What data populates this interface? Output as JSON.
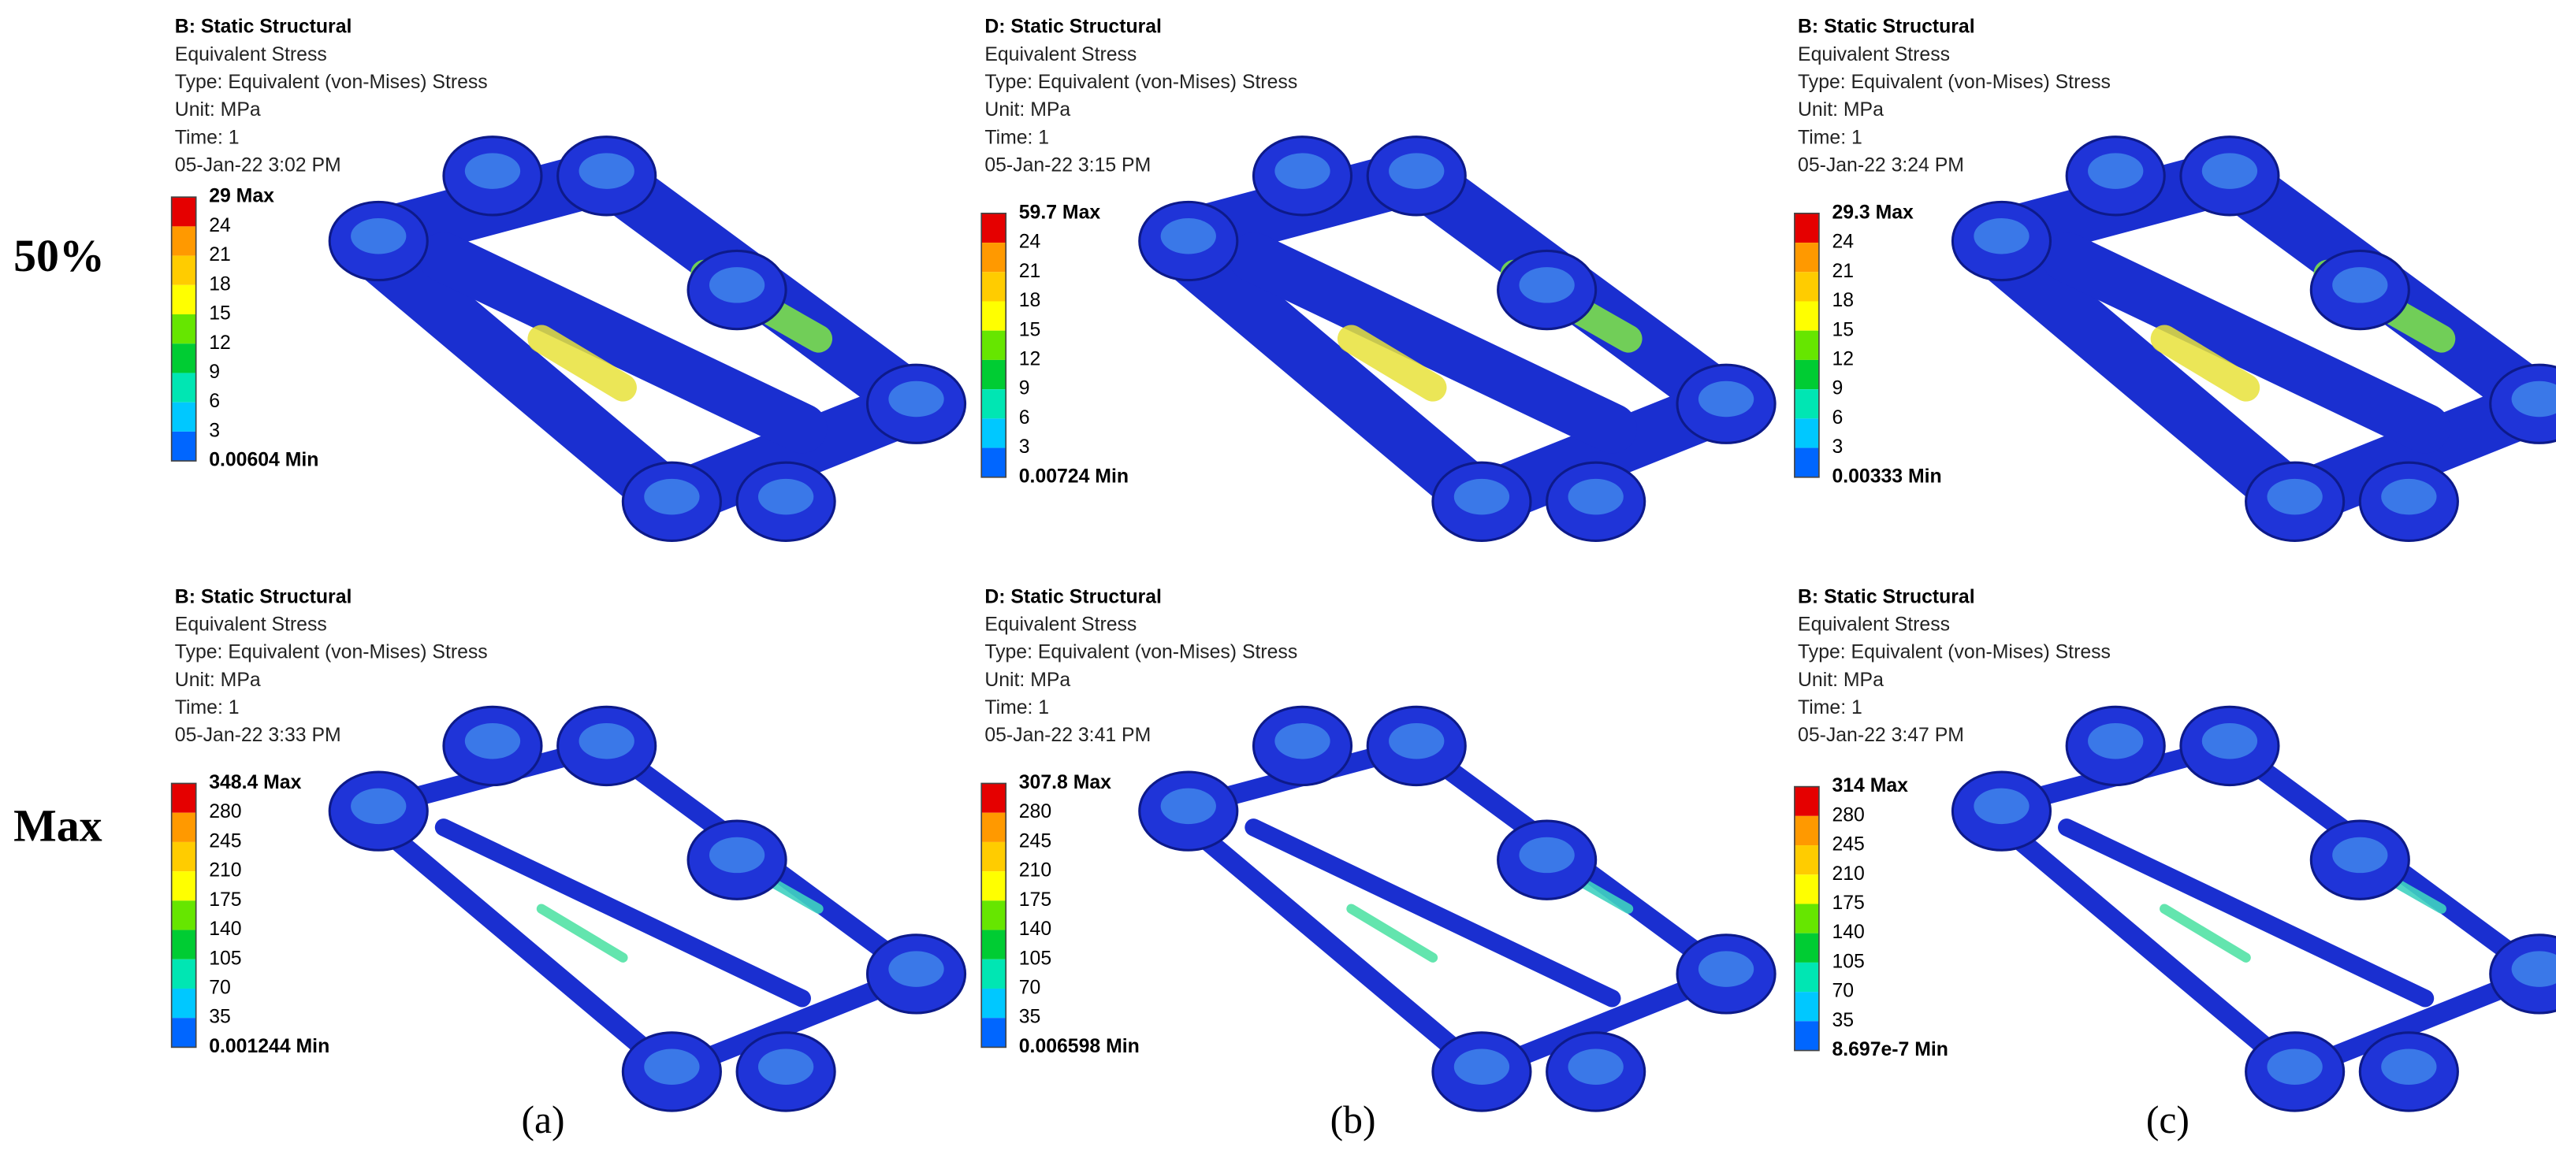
{
  "row_labels": [
    "50%",
    "Max"
  ],
  "column_labels": [
    "(a)",
    "(b)",
    "(c)"
  ],
  "panels": [
    {
      "title": "B: Static Structural",
      "lines": [
        "Equivalent Stress",
        "Type: Equivalent (von-Mises) Stress",
        "Unit: MPa",
        "Time: 1",
        "05-Jan-22 3:02 PM"
      ],
      "legend": [
        "29 Max",
        "24",
        "21",
        "18",
        "15",
        "12",
        "9",
        "6",
        "3",
        "0.00604 Min"
      ]
    },
    {
      "title": "D: Static Structural",
      "lines": [
        "Equivalent Stress",
        "Type: Equivalent (von-Mises) Stress",
        "Unit: MPa",
        "Time: 1",
        "05-Jan-22 3:15 PM"
      ],
      "legend": [
        "59.7 Max",
        "24",
        "21",
        "18",
        "15",
        "12",
        "9",
        "6",
        "3",
        "0.00724 Min"
      ]
    },
    {
      "title": "B: Static Structural",
      "lines": [
        "Equivalent Stress",
        "Type: Equivalent (von-Mises) Stress",
        "Unit: MPa",
        "Time: 1",
        "05-Jan-22 3:24 PM"
      ],
      "legend": [
        "29.3 Max",
        "24",
        "21",
        "18",
        "15",
        "12",
        "9",
        "6",
        "3",
        "0.00333 Min"
      ]
    },
    {
      "title": "B: Static Structural",
      "lines": [
        "Equivalent Stress",
        "Type: Equivalent (von-Mises) Stress",
        "Unit: MPa",
        "Time: 1",
        "05-Jan-22 3:33 PM"
      ],
      "legend": [
        "348.4 Max",
        "280",
        "245",
        "210",
        "175",
        "140",
        "105",
        "70",
        "35",
        "0.001244 Min"
      ]
    },
    {
      "title": "D: Static Structural",
      "lines": [
        "Equivalent Stress",
        "Type: Equivalent (von-Mises) Stress",
        "Unit: MPa",
        "Time: 1",
        "05-Jan-22 3:41 PM"
      ],
      "legend": [
        "307.8 Max",
        "280",
        "245",
        "210",
        "175",
        "140",
        "105",
        "70",
        "35",
        "0.006598 Min"
      ]
    },
    {
      "title": "B: Static Structural",
      "lines": [
        "Equivalent Stress",
        "Type: Equivalent (von-Mises) Stress",
        "Unit: MPa",
        "Time: 1",
        "05-Jan-22 3:47 PM"
      ],
      "legend": [
        "314 Max",
        "280",
        "245",
        "210",
        "175",
        "140",
        "105",
        "70",
        "35",
        "8.697e-7 Min"
      ]
    }
  ]
}
